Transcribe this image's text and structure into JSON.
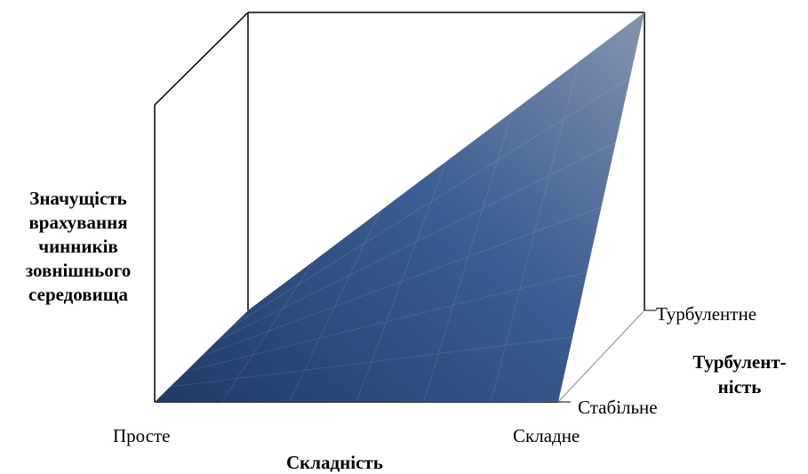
{
  "chart_data": {
    "type": "surface",
    "x_axis": {
      "label": "Складність",
      "ticks": [
        "Просте",
        "Складне"
      ]
    },
    "y_axis": {
      "label_lines": [
        "Турбулент-",
        "ність"
      ],
      "ticks": [
        "Стабільне",
        "Турбулентне"
      ]
    },
    "z_axis": {
      "label_lines": [
        "Значущість",
        "врахування",
        "чинників",
        "зовнішнього",
        "середовища"
      ]
    },
    "surface": [
      [
        0,
        0
      ],
      [
        0,
        1
      ]
    ],
    "colors": {
      "surface_low": "#203a66",
      "surface_high": "#8494ae",
      "axes": "#000000"
    }
  }
}
